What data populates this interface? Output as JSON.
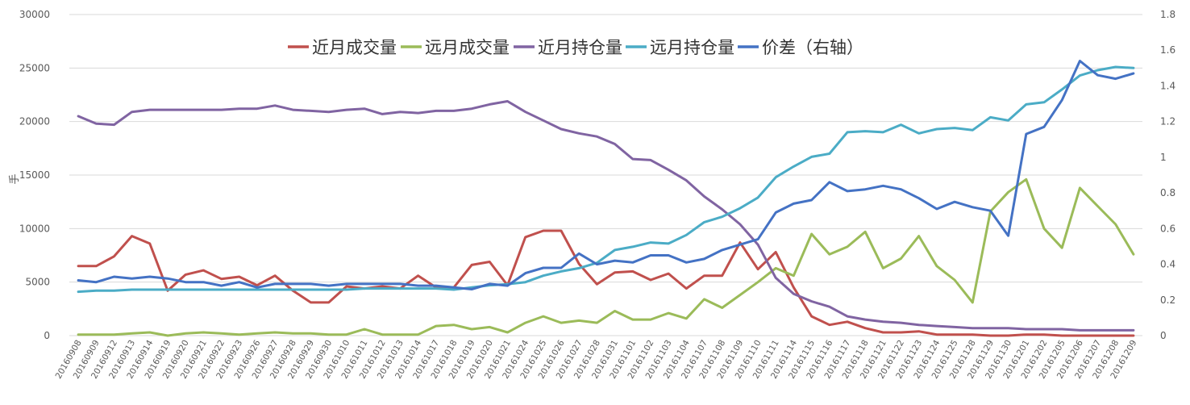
{
  "chart_data": {
    "type": "line",
    "ylabel_left": "手",
    "left_ylim": [
      0,
      30000
    ],
    "left_ticks": [
      "0",
      "5000",
      "10000",
      "15000",
      "20000",
      "25000",
      "30000"
    ],
    "right_ylim": [
      0,
      1.8
    ],
    "right_ticks": [
      "0",
      "0.2",
      "0.4",
      "0.6",
      "0.8",
      "1",
      "1.2",
      "1.4",
      "1.6",
      "1.8"
    ],
    "grid": true,
    "legend_position": "top",
    "categories": [
      "20160908",
      "20160909",
      "20160912",
      "20160913",
      "20160914",
      "20160919",
      "20160920",
      "20160921",
      "20160922",
      "20160923",
      "20160926",
      "20160927",
      "20160928",
      "20160929",
      "20160930",
      "20161010",
      "20161011",
      "20161012",
      "20161013",
      "20161014",
      "20161017",
      "20161018",
      "20161019",
      "20161020",
      "20161021",
      "20161024",
      "20161025",
      "20161026",
      "20161027",
      "20161028",
      "20161031",
      "20161101",
      "20161102",
      "20161103",
      "20161104",
      "20161107",
      "20161108",
      "20161109",
      "20161110",
      "20161111",
      "20161114",
      "20161115",
      "20161116",
      "20161117",
      "20161118",
      "20161121",
      "20161122",
      "20161123",
      "20161124",
      "20161125",
      "20161128",
      "20161129",
      "20161130",
      "20161201",
      "20161202",
      "20161205",
      "20161206",
      "20161207",
      "20161208",
      "20161209"
    ],
    "series": [
      {
        "name": "近月成交量",
        "color": "#c0504d",
        "axis": "left",
        "values": [
          6500,
          6500,
          7400,
          9300,
          8600,
          4200,
          5700,
          6100,
          5300,
          5500,
          4700,
          5600,
          4200,
          3100,
          3100,
          4600,
          4400,
          4600,
          4400,
          5600,
          4500,
          4500,
          6600,
          6900,
          4700,
          9200,
          9800,
          9800,
          6700,
          4800,
          5900,
          6000,
          5200,
          5800,
          4400,
          5600,
          5600,
          8700,
          6200,
          7800,
          4500,
          1800,
          1000,
          1300,
          700,
          300,
          300,
          400,
          100,
          100,
          100,
          0,
          0,
          100,
          100,
          0,
          0,
          0,
          0,
          0
        ]
      },
      {
        "name": "远月成交量",
        "color": "#9bbb59",
        "axis": "left",
        "values": [
          100,
          100,
          100,
          200,
          300,
          0,
          200,
          300,
          200,
          100,
          200,
          300,
          200,
          200,
          100,
          100,
          600,
          100,
          100,
          100,
          900,
          1000,
          600,
          800,
          300,
          1200,
          1800,
          1200,
          1400,
          1200,
          2300,
          1500,
          1500,
          2100,
          1600,
          3400,
          2600,
          3800,
          5000,
          6300,
          5600,
          9500,
          7600,
          8300,
          9700,
          6300,
          7200,
          9300,
          6500,
          5200,
          3100,
          11600,
          13400,
          14600,
          10000,
          8200,
          13800,
          12100,
          10400,
          7600
        ]
      },
      {
        "name": "近月持仓量",
        "color": "#8064a2",
        "axis": "left",
        "values": [
          20500,
          19800,
          19700,
          20900,
          21100,
          21100,
          21100,
          21100,
          21100,
          21200,
          21200,
          21500,
          21100,
          21000,
          20900,
          21100,
          21200,
          20700,
          20900,
          20800,
          21000,
          21000,
          21200,
          21600,
          21900,
          20900,
          20100,
          19300,
          18900,
          18600,
          17900,
          16500,
          16400,
          15500,
          14500,
          13000,
          11800,
          10400,
          8500,
          5400,
          3900,
          3200,
          2700,
          1800,
          1500,
          1300,
          1200,
          1000,
          900,
          800,
          700,
          700,
          700,
          600,
          600,
          600,
          500,
          500,
          500,
          500
        ]
      },
      {
        "name": "远月持仓量",
        "color": "#4bacc6",
        "axis": "left",
        "values": [
          4100,
          4200,
          4200,
          4300,
          4300,
          4300,
          4300,
          4300,
          4300,
          4300,
          4300,
          4300,
          4300,
          4300,
          4300,
          4300,
          4400,
          4400,
          4400,
          4400,
          4400,
          4300,
          4500,
          4700,
          4800,
          5000,
          5600,
          6000,
          6300,
          6800,
          8000,
          8300,
          8700,
          8600,
          9400,
          10600,
          11100,
          11900,
          12900,
          14800,
          15800,
          16700,
          17000,
          19000,
          19100,
          19000,
          19700,
          18900,
          19300,
          19400,
          19200,
          20400,
          20100,
          21600,
          21800,
          23000,
          24300,
          24800,
          25100,
          25000
        ]
      },
      {
        "name": "价差（右轴）",
        "color": "#4472c4",
        "axis": "right",
        "values": [
          0.31,
          0.3,
          0.33,
          0.32,
          0.33,
          0.32,
          0.3,
          0.3,
          0.28,
          0.3,
          0.27,
          0.29,
          0.29,
          0.29,
          0.28,
          0.29,
          0.29,
          0.29,
          0.29,
          0.28,
          0.28,
          0.27,
          0.26,
          0.29,
          0.28,
          0.35,
          0.38,
          0.38,
          0.46,
          0.4,
          0.42,
          0.41,
          0.45,
          0.45,
          0.41,
          0.43,
          0.48,
          0.51,
          0.54,
          0.69,
          0.74,
          0.76,
          0.86,
          0.81,
          0.82,
          0.84,
          0.82,
          0.77,
          0.71,
          0.75,
          0.72,
          0.7,
          0.56,
          1.13,
          1.17,
          1.32,
          1.54,
          1.46,
          1.44,
          1.47
        ]
      }
    ]
  }
}
